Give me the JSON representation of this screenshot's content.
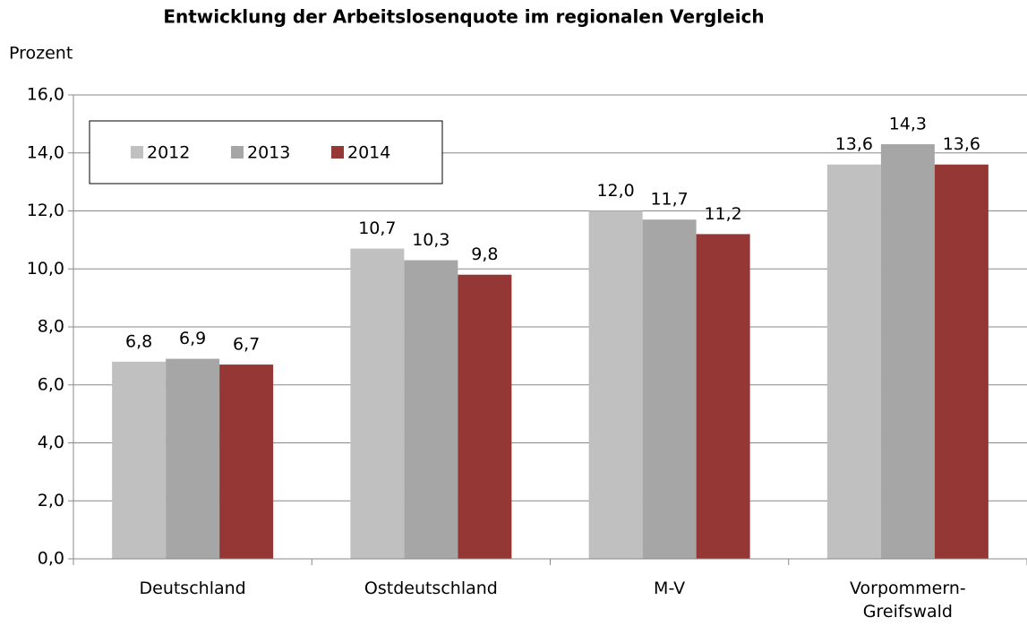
{
  "chart_data": {
    "type": "bar",
    "title": "Entwicklung der Arbeitslosenquote im regionalen Vergleich",
    "y_label": "Prozent",
    "categories": [
      "Deutschland",
      "Ostdeutschland",
      "M-V",
      "Vorpommern-Greifswald"
    ],
    "series": [
      {
        "name": "2012",
        "color": "#c0c0c0",
        "values": [
          6.8,
          10.7,
          12.0,
          13.6
        ],
        "value_labels": [
          "6,8",
          "10,7",
          "12,0",
          "13,6"
        ]
      },
      {
        "name": "2013",
        "color": "#a6a6a6",
        "values": [
          6.9,
          10.3,
          11.7,
          14.3
        ],
        "value_labels": [
          "6,9",
          "10,3",
          "11,7",
          "14,3"
        ]
      },
      {
        "name": "2014",
        "color": "#953735",
        "values": [
          6.7,
          9.8,
          11.2,
          13.6
        ],
        "value_labels": [
          "6,7",
          "9,8",
          "11,2",
          "13,6"
        ]
      }
    ],
    "ylim": [
      0,
      16
    ],
    "yticks": [
      {
        "value": 0,
        "label": "0,0"
      },
      {
        "value": 2,
        "label": "2,0"
      },
      {
        "value": 4,
        "label": "4,0"
      },
      {
        "value": 6,
        "label": "6,0"
      },
      {
        "value": 8,
        "label": "8,0"
      },
      {
        "value": 10,
        "label": "10,0"
      },
      {
        "value": 12,
        "label": "12,0"
      },
      {
        "value": 14,
        "label": "14,0"
      },
      {
        "value": 16,
        "label": "16,0"
      }
    ],
    "grid": true,
    "legend": "upper left"
  }
}
